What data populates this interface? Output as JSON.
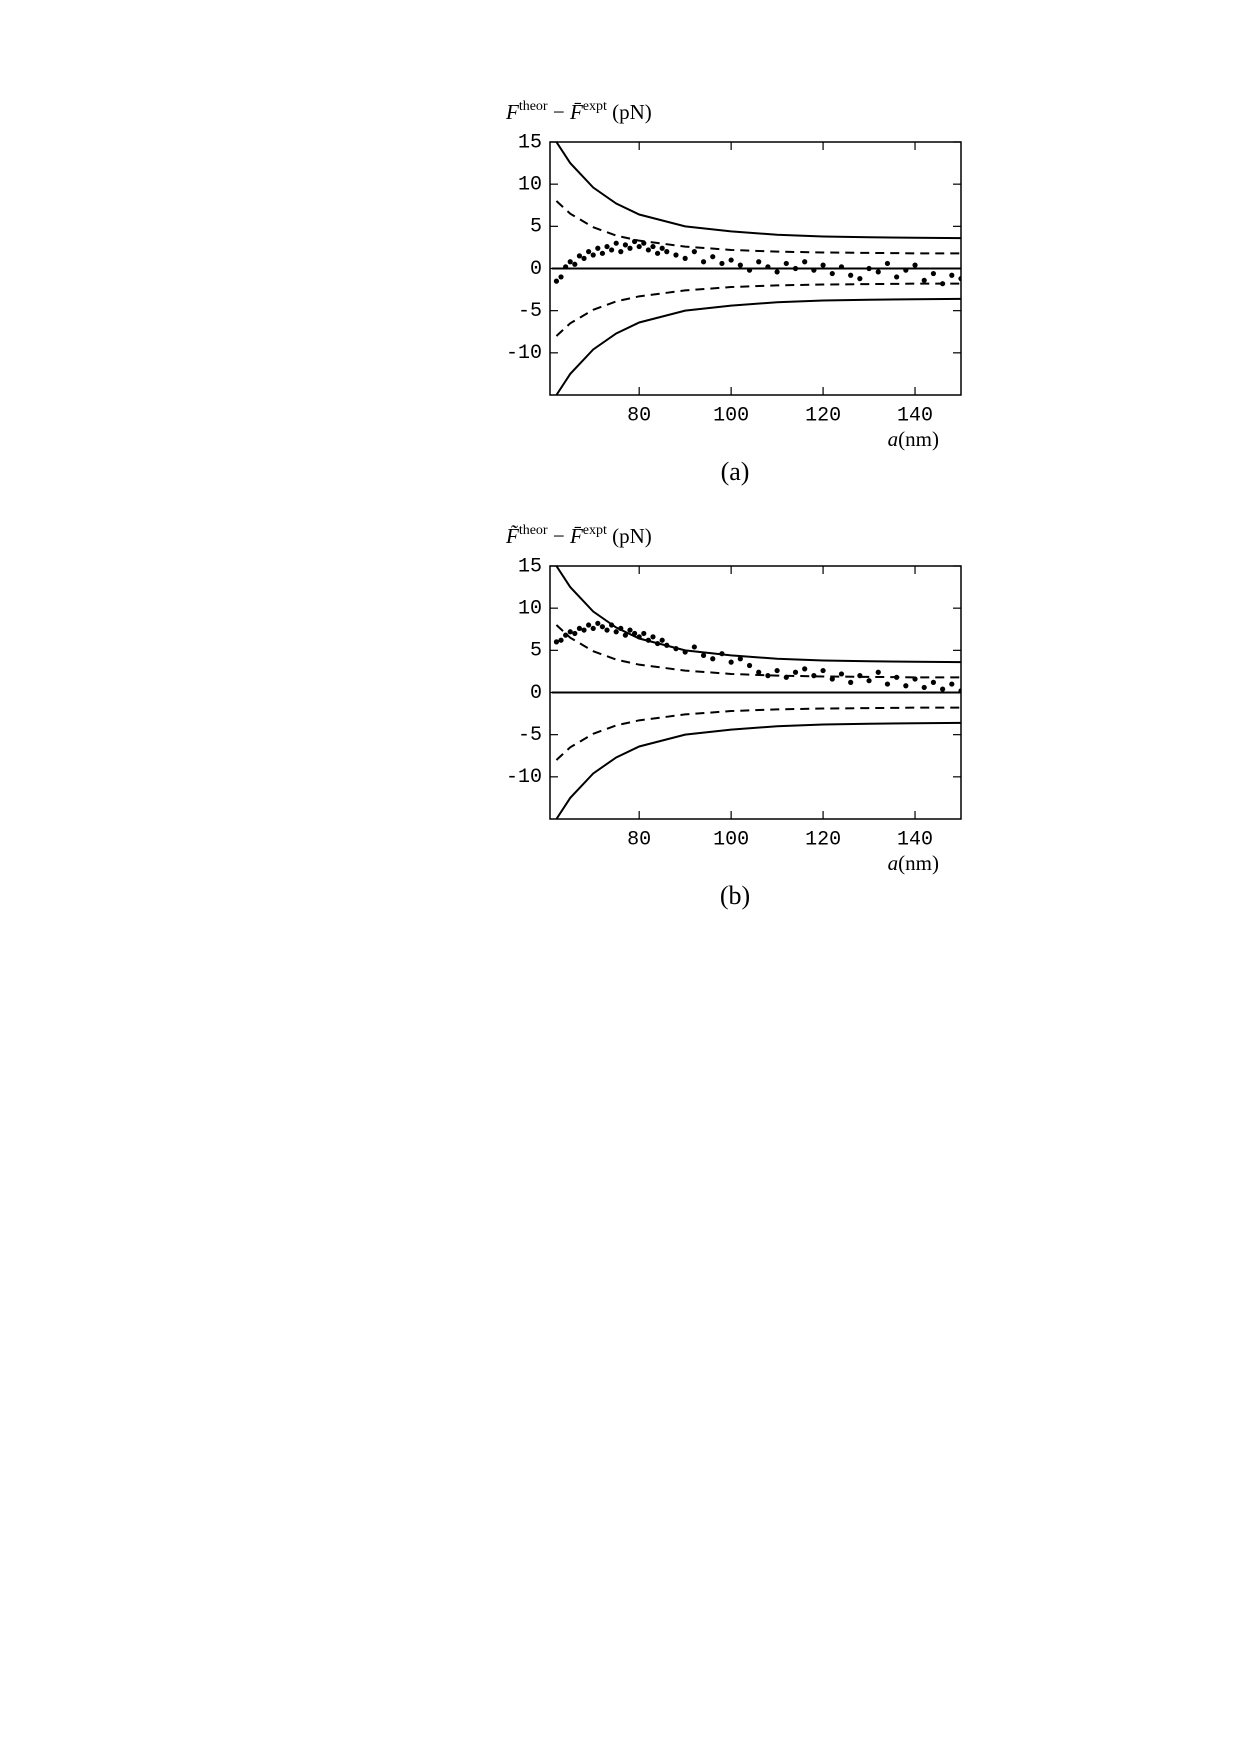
{
  "chart_data": [
    {
      "type": "line",
      "caption": "(a)",
      "ylabel": {
        "parts": [
          {
            "text": "F",
            "italic": true
          },
          {
            "text": "theor",
            "sup": true
          },
          {
            "text": " − "
          },
          {
            "text": "F̄",
            "italic": true
          },
          {
            "text": "expt",
            "sup": true
          },
          {
            "text": " (pN)"
          }
        ]
      },
      "xlabel": {
        "parts": [
          {
            "text": "a",
            "italic": true
          },
          {
            "text": "(nm)"
          }
        ]
      },
      "xlim": [
        60.6,
        150
      ],
      "ylim": [
        -15,
        15
      ],
      "xticks": [
        80,
        100,
        120,
        140
      ],
      "yticks": [
        15,
        10,
        5,
        0,
        -5,
        -10
      ],
      "series": [
        {
          "style": "solid",
          "color": "#000000",
          "x": [
            62,
            65,
            70,
            75,
            80,
            90,
            100,
            110,
            120,
            130,
            140,
            150
          ],
          "values": [
            15,
            12.5,
            9.6,
            7.7,
            6.4,
            5.0,
            4.4,
            4.0,
            3.8,
            3.7,
            3.65,
            3.6
          ]
        },
        {
          "style": "solid",
          "color": "#000000",
          "x": [
            62,
            65,
            70,
            75,
            80,
            90,
            100,
            110,
            120,
            130,
            140,
            150
          ],
          "values": [
            -15,
            -12.5,
            -9.6,
            -7.7,
            -6.4,
            -5.0,
            -4.4,
            -4.0,
            -3.8,
            -3.7,
            -3.65,
            -3.6
          ]
        },
        {
          "style": "dashed",
          "color": "#000000",
          "x": [
            62,
            65,
            70,
            75,
            80,
            90,
            100,
            110,
            120,
            130,
            140,
            150
          ],
          "values": [
            8,
            6.5,
            4.9,
            3.9,
            3.3,
            2.6,
            2.2,
            2.0,
            1.9,
            1.85,
            1.8,
            1.8
          ]
        },
        {
          "style": "dashed",
          "color": "#000000",
          "x": [
            62,
            65,
            70,
            75,
            80,
            90,
            100,
            110,
            120,
            130,
            140,
            150
          ],
          "values": [
            -8,
            -6.5,
            -4.9,
            -3.9,
            -3.3,
            -2.6,
            -2.2,
            -2.0,
            -1.9,
            -1.85,
            -1.8,
            -1.8
          ]
        },
        {
          "style": "solid",
          "color": "#000000",
          "x": [
            61,
            150
          ],
          "values": [
            0,
            0
          ]
        },
        {
          "style": "points",
          "color": "#000000",
          "x": [
            62,
            63,
            64,
            65,
            66,
            67,
            68,
            69,
            70,
            71,
            72,
            73,
            74,
            75,
            76,
            77,
            78,
            79,
            80,
            81,
            82,
            83,
            84,
            85,
            86,
            88,
            90,
            92,
            94,
            96,
            98,
            100,
            102,
            104,
            106,
            108,
            110,
            112,
            114,
            116,
            118,
            120,
            122,
            124,
            126,
            128,
            130,
            132,
            134,
            136,
            138,
            140,
            142,
            144,
            146,
            148,
            150
          ],
          "values": [
            -1.5,
            -1.0,
            0.2,
            0.8,
            0.5,
            1.5,
            1.2,
            2.0,
            1.6,
            2.4,
            1.8,
            2.6,
            2.2,
            3.0,
            2.0,
            2.8,
            2.4,
            3.2,
            2.6,
            3.0,
            2.2,
            2.6,
            1.8,
            2.4,
            2.0,
            1.6,
            1.2,
            2.0,
            0.8,
            1.4,
            0.6,
            1.0,
            0.4,
            -0.2,
            0.8,
            0.2,
            -0.4,
            0.6,
            0.0,
            0.8,
            -0.2,
            0.4,
            -0.6,
            0.2,
            -0.8,
            -1.2,
            0.0,
            -0.4,
            0.6,
            -1.0,
            -0.2,
            0.4,
            -1.4,
            -0.6,
            -1.8,
            -0.8,
            -1.2
          ]
        }
      ]
    },
    {
      "type": "line",
      "caption": "(b)",
      "ylabel": {
        "parts": [
          {
            "text": "F̃",
            "italic": true
          },
          {
            "text": "theor",
            "sup": true
          },
          {
            "text": " − "
          },
          {
            "text": "F̄",
            "italic": true
          },
          {
            "text": "expt",
            "sup": true
          },
          {
            "text": " (pN)"
          }
        ]
      },
      "xlabel": {
        "parts": [
          {
            "text": "a",
            "italic": true
          },
          {
            "text": "(nm)"
          }
        ]
      },
      "xlim": [
        60.6,
        150
      ],
      "ylim": [
        -15,
        15
      ],
      "xticks": [
        80,
        100,
        120,
        140
      ],
      "yticks": [
        15,
        10,
        5,
        0,
        -5,
        -10
      ],
      "series": [
        {
          "style": "solid",
          "color": "#000000",
          "x": [
            62,
            65,
            70,
            75,
            80,
            90,
            100,
            110,
            120,
            130,
            140,
            150
          ],
          "values": [
            15,
            12.5,
            9.6,
            7.7,
            6.4,
            5.0,
            4.4,
            4.0,
            3.8,
            3.7,
            3.65,
            3.6
          ]
        },
        {
          "style": "solid",
          "color": "#000000",
          "x": [
            62,
            65,
            70,
            75,
            80,
            90,
            100,
            110,
            120,
            130,
            140,
            150
          ],
          "values": [
            -15,
            -12.5,
            -9.6,
            -7.7,
            -6.4,
            -5.0,
            -4.4,
            -4.0,
            -3.8,
            -3.7,
            -3.65,
            -3.6
          ]
        },
        {
          "style": "dashed",
          "color": "#000000",
          "x": [
            62,
            65,
            70,
            75,
            80,
            90,
            100,
            110,
            120,
            130,
            140,
            150
          ],
          "values": [
            8,
            6.5,
            4.9,
            3.9,
            3.3,
            2.6,
            2.2,
            2.0,
            1.9,
            1.85,
            1.8,
            1.8
          ]
        },
        {
          "style": "dashed",
          "color": "#000000",
          "x": [
            62,
            65,
            70,
            75,
            80,
            90,
            100,
            110,
            120,
            130,
            140,
            150
          ],
          "values": [
            -8,
            -6.5,
            -4.9,
            -3.9,
            -3.3,
            -2.6,
            -2.2,
            -2.0,
            -1.9,
            -1.85,
            -1.8,
            -1.8
          ]
        },
        {
          "style": "solid",
          "color": "#000000",
          "x": [
            61,
            150
          ],
          "values": [
            0,
            0
          ]
        },
        {
          "style": "points",
          "color": "#000000",
          "x": [
            62,
            63,
            64,
            65,
            66,
            67,
            68,
            69,
            70,
            71,
            72,
            73,
            74,
            75,
            76,
            77,
            78,
            79,
            80,
            81,
            82,
            83,
            84,
            85,
            86,
            88,
            90,
            92,
            94,
            96,
            98,
            100,
            102,
            104,
            106,
            108,
            110,
            112,
            114,
            116,
            118,
            120,
            122,
            124,
            126,
            128,
            130,
            132,
            134,
            136,
            138,
            140,
            142,
            144,
            146,
            148,
            150
          ],
          "values": [
            6.0,
            6.2,
            6.8,
            7.2,
            7.0,
            7.6,
            7.4,
            8.0,
            7.6,
            8.2,
            7.8,
            7.4,
            8.0,
            7.2,
            7.6,
            6.8,
            7.4,
            7.0,
            6.6,
            7.0,
            6.2,
            6.6,
            5.8,
            6.2,
            5.6,
            5.2,
            4.8,
            5.4,
            4.4,
            4.0,
            4.6,
            3.6,
            4.0,
            3.2,
            2.4,
            2.0,
            2.6,
            1.8,
            2.4,
            2.8,
            2.0,
            2.6,
            1.6,
            2.2,
            1.2,
            2.0,
            1.4,
            2.4,
            1.0,
            1.8,
            0.8,
            1.6,
            0.6,
            1.2,
            0.4,
            1.0,
            0.2
          ]
        }
      ]
    }
  ]
}
